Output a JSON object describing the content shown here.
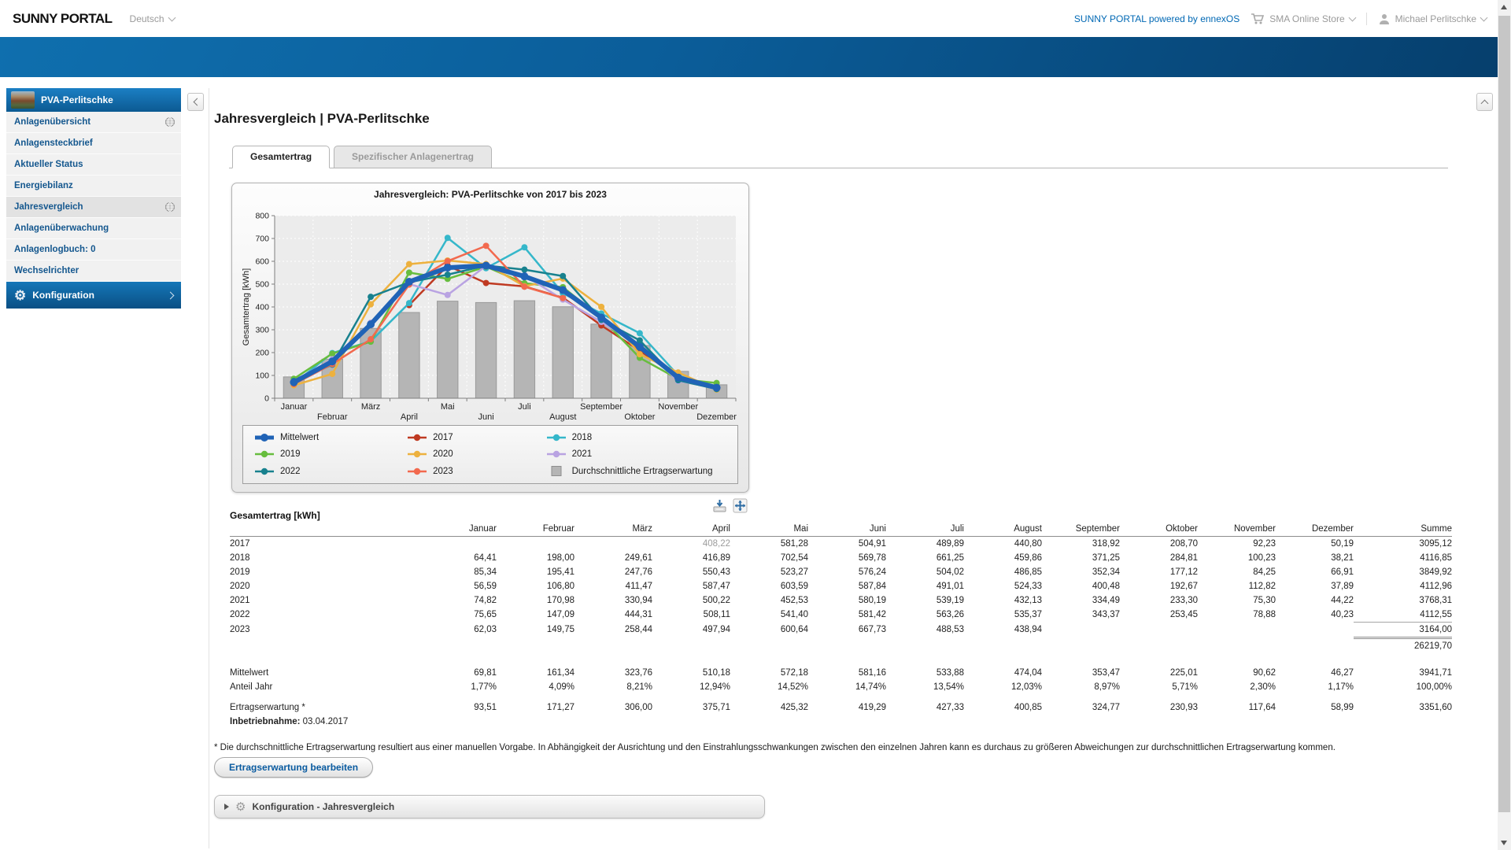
{
  "icons": {
    "gear_glyph": "⚙"
  },
  "topbar": {
    "logo": "SUNNY PORTAL",
    "language_label": "Deutsch",
    "powered_label": "SUNNY PORTAL powered by ennexOS",
    "store_label": "SMA Online Store",
    "user_label": "Michael Perlitschke"
  },
  "sidebar": {
    "plant_name": "PVA-Perlitschke",
    "items": [
      {
        "label": "Anlagenübersicht",
        "globe": true,
        "active": false
      },
      {
        "label": "Anlagensteckbrief",
        "globe": false,
        "active": false
      },
      {
        "label": "Aktueller Status",
        "globe": false,
        "active": false
      },
      {
        "label": "Energiebilanz",
        "globe": false,
        "active": false
      },
      {
        "label": "Jahresvergleich",
        "globe": true,
        "active": true
      },
      {
        "label": "Anlagenüberwachung",
        "globe": false,
        "active": false
      },
      {
        "label": "Anlagenlogbuch: 0",
        "globe": false,
        "active": false
      },
      {
        "label": "Wechselrichter",
        "globe": false,
        "active": false
      }
    ],
    "config_label": "Konfiguration"
  },
  "main": {
    "page_title": "Jahresvergleich | PVA-Perlitschke",
    "tabs": [
      {
        "label": "Gesamtertrag",
        "active": true
      },
      {
        "label": "Spezifischer Anlagenertrag",
        "active": false
      }
    ],
    "footnote": "* Die durchschnittliche Ertragserwartung resultiert aus einer manuellen Vorgabe. In Abhängigkeit der Ausrichtung und den Einstrahlungsschwankungen zwischen den einzelnen Jahren kann es durchaus zu größeren Abweichungen zur durchschnittlichen Ertragserwartung kommen.",
    "edit_button_label": "Ertragserwartung bearbeiten",
    "config_panel_label": "Konfiguration - Jahresvergleich"
  },
  "chart_data": {
    "type": "line+bar",
    "title": "Jahresvergleich: PVA-Perlitschke von 2017 bis 2023",
    "xlabel": "",
    "ylabel": "Gesamtertrag [kWh]",
    "ylim": [
      0,
      800
    ],
    "ytick_step": 100,
    "grid": true,
    "legend_position": "bottom",
    "categories": [
      "Januar",
      "Februar",
      "März",
      "April",
      "Mai",
      "Juni",
      "Juli",
      "August",
      "September",
      "Oktober",
      "November",
      "Dezember"
    ],
    "bar_series": {
      "name": "Durchschnittliche Ertragserwartung",
      "color": "#b5b5b5",
      "border": "#999999",
      "values": [
        93.51,
        171.27,
        306.0,
        375.71,
        425.32,
        419.29,
        427.33,
        400.85,
        324.77,
        230.93,
        117.64,
        58.99
      ]
    },
    "line_series": [
      {
        "name": "Mittelwert",
        "color": "#2063b6",
        "width": 6,
        "values": [
          69.81,
          161.34,
          323.76,
          510.18,
          572.18,
          581.16,
          533.88,
          474.04,
          353.47,
          225.01,
          90.62,
          46.27
        ]
      },
      {
        "name": "2017",
        "color": "#bf3a22",
        "width": 2.5,
        "values": [
          null,
          null,
          null,
          408.22,
          581.28,
          504.91,
          489.89,
          440.8,
          318.92,
          208.7,
          92.23,
          50.19
        ]
      },
      {
        "name": "2018",
        "color": "#35b7ca",
        "width": 2.5,
        "values": [
          64.41,
          198.0,
          249.61,
          416.89,
          702.54,
          569.78,
          661.25,
          459.86,
          371.25,
          284.81,
          100.23,
          38.21
        ]
      },
      {
        "name": "2019",
        "color": "#67bd3e",
        "width": 2.5,
        "values": [
          85.34,
          195.41,
          247.76,
          550.43,
          523.27,
          576.24,
          504.02,
          486.85,
          352.34,
          177.12,
          84.25,
          66.91
        ]
      },
      {
        "name": "2020",
        "color": "#edb13e",
        "width": 2.5,
        "values": [
          56.59,
          106.8,
          411.47,
          587.47,
          603.59,
          587.84,
          491.01,
          524.33,
          400.48,
          192.67,
          112.82,
          37.89
        ]
      },
      {
        "name": "2021",
        "color": "#b9a3e2",
        "width": 2.5,
        "values": [
          74.82,
          170.98,
          330.94,
          500.22,
          452.53,
          580.19,
          539.19,
          432.13,
          334.49,
          233.3,
          75.3,
          44.22
        ]
      },
      {
        "name": "2022",
        "color": "#18818e",
        "width": 2.5,
        "values": [
          75.65,
          147.09,
          444.31,
          508.11,
          541.4,
          581.42,
          563.26,
          535.37,
          343.37,
          253.45,
          78.88,
          40.23
        ]
      },
      {
        "name": "2023",
        "color": "#f2694e",
        "width": 2.5,
        "values": [
          62.03,
          149.75,
          258.44,
          497.94,
          600.64,
          667.73,
          488.53,
          438.94,
          null,
          null,
          null,
          null
        ]
      }
    ]
  },
  "table": {
    "caption": "Gesamtertrag [kWh]",
    "columns": [
      "",
      "Januar",
      "Februar",
      "März",
      "April",
      "Mai",
      "Juni",
      "Juli",
      "August",
      "September",
      "Oktober",
      "November",
      "Dezember",
      "Summe"
    ],
    "year_rows": [
      {
        "cells": [
          "2017",
          "",
          "",
          "",
          "408,22",
          "581,28",
          "504,91",
          "489,89",
          "440,80",
          "318,92",
          "208,70",
          "92,23",
          "50,19",
          "3095,12"
        ],
        "muted_cols": [
          4
        ]
      },
      {
        "cells": [
          "2018",
          "64,41",
          "198,00",
          "249,61",
          "416,89",
          "702,54",
          "569,78",
          "661,25",
          "459,86",
          "371,25",
          "284,81",
          "100,23",
          "38,21",
          "4116,85"
        ]
      },
      {
        "cells": [
          "2019",
          "85,34",
          "195,41",
          "247,76",
          "550,43",
          "523,27",
          "576,24",
          "504,02",
          "486,85",
          "352,34",
          "177,12",
          "84,25",
          "66,91",
          "3849,92"
        ]
      },
      {
        "cells": [
          "2020",
          "56,59",
          "106,80",
          "411,47",
          "587,47",
          "603,59",
          "587,84",
          "491,01",
          "524,33",
          "400,48",
          "192,67",
          "112,82",
          "37,89",
          "4112,96"
        ]
      },
      {
        "cells": [
          "2021",
          "74,82",
          "170,98",
          "330,94",
          "500,22",
          "452,53",
          "580,19",
          "539,19",
          "432,13",
          "334,49",
          "233,30",
          "75,30",
          "44,22",
          "3768,31"
        ]
      },
      {
        "cells": [
          "2022",
          "75,65",
          "147,09",
          "444,31",
          "508,11",
          "541,40",
          "581,42",
          "563,26",
          "535,37",
          "343,37",
          "253,45",
          "78,88",
          "40,23",
          "4112,55"
        ]
      },
      {
        "cells": [
          "2023",
          "62,03",
          "149,75",
          "258,44",
          "497,94",
          "600,64",
          "667,73",
          "488,53",
          "438,94",
          "",
          "",
          "",
          "",
          "3164,00"
        ],
        "sum_topline": true
      }
    ],
    "grand_total": "26219,70",
    "stat_rows": [
      {
        "cells": [
          "Mittelwert",
          "69,81",
          "161,34",
          "323,76",
          "510,18",
          "572,18",
          "581,16",
          "533,88",
          "474,04",
          "353,47",
          "225,01",
          "90,62",
          "46,27",
          "3941,71"
        ]
      },
      {
        "cells": [
          "Anteil Jahr",
          "1,77%",
          "4,09%",
          "8,21%",
          "12,94%",
          "14,52%",
          "14,74%",
          "13,54%",
          "12,03%",
          "8,97%",
          "5,71%",
          "2,30%",
          "1,17%",
          "100,00%"
        ]
      }
    ],
    "expectation_row": {
      "cells": [
        "Ertragserwartung *",
        "93,51",
        "171,27",
        "306,00",
        "375,71",
        "425,32",
        "419,29",
        "427,33",
        "400,85",
        "324,77",
        "230,93",
        "117,64",
        "58,99",
        "3351,60"
      ]
    },
    "commissioning_label": "Inbetriebnahme:",
    "commissioning_value": "03.04.2017"
  }
}
